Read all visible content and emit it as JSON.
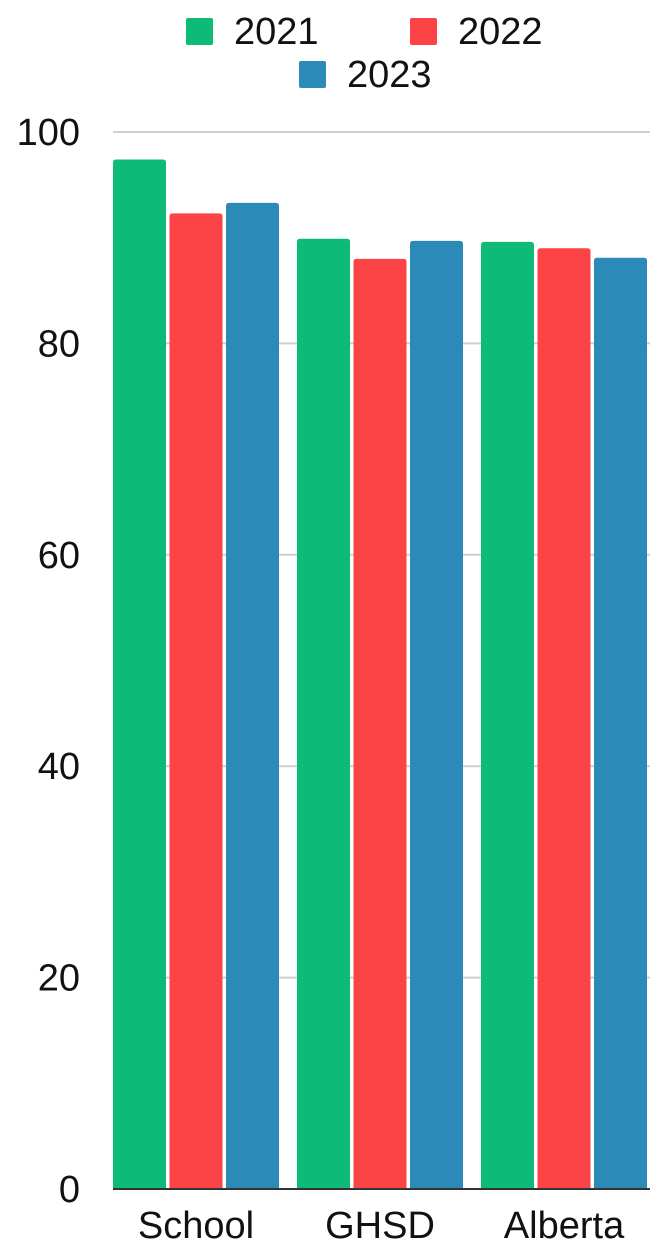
{
  "chart_data": {
    "type": "bar",
    "categories": [
      "School",
      "GHSD",
      "Alberta"
    ],
    "series": [
      {
        "name": "2021",
        "color": "#0eba78",
        "values": [
          97.4,
          89.9,
          89.6
        ]
      },
      {
        "name": "2022",
        "color": "#fc4345",
        "values": [
          92.3,
          88.0,
          89.0
        ]
      },
      {
        "name": "2023",
        "color": "#2c8ab8",
        "values": [
          93.3,
          89.7,
          88.1
        ]
      }
    ],
    "title": "",
    "xlabel": "",
    "ylabel": "",
    "ylim": [
      0,
      100
    ],
    "yticks": [
      "0",
      "20",
      "40",
      "60",
      "80",
      "100"
    ],
    "grid": true,
    "legend_position": "top-center"
  }
}
